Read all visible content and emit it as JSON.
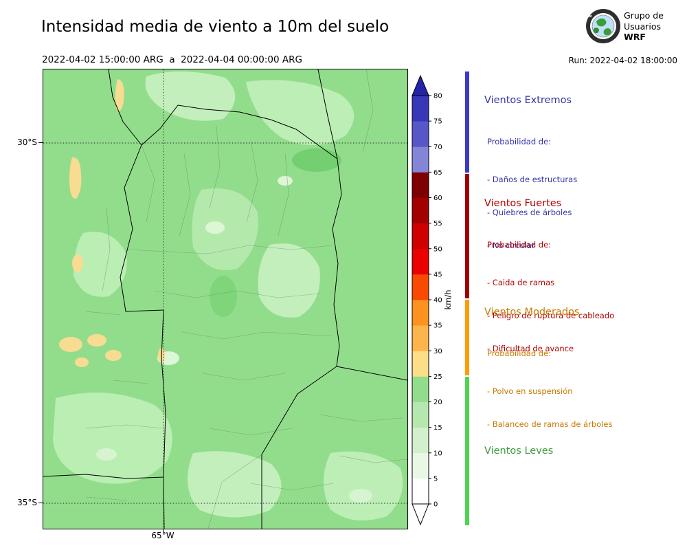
{
  "header": {
    "title": "Intensidad media de viento a 10m del suelo",
    "subtitle": "2022-04-02 15:00:00 ARG  a  2022-04-04 00:00:00 ARG",
    "run_label": "Run: 2022-04-02 18:00:00",
    "logo": {
      "line1": "Grupo de",
      "line2": "Usuarios",
      "line3": "WRF"
    }
  },
  "map": {
    "lat_ticks": [
      "30°S",
      "35°S"
    ],
    "lon_ticks": [
      "65°W"
    ]
  },
  "colorbar": {
    "unit": "km/h",
    "max": 80,
    "ticks": [
      "0",
      "5",
      "10",
      "15",
      "20",
      "25",
      "30",
      "35",
      "40",
      "45",
      "50",
      "55",
      "60",
      "65",
      "70",
      "75",
      "80"
    ],
    "segments": [
      {
        "from": 0,
        "to": 5,
        "color": "#ffffff"
      },
      {
        "from": 5,
        "to": 10,
        "color": "#e9f8e5"
      },
      {
        "from": 10,
        "to": 15,
        "color": "#d2f0cc"
      },
      {
        "from": 15,
        "to": 20,
        "color": "#b5e7ae"
      },
      {
        "from": 20,
        "to": 25,
        "color": "#92dd8c"
      },
      {
        "from": 25,
        "to": 30,
        "color": "#fcdd88"
      },
      {
        "from": 30,
        "to": 35,
        "color": "#fdb44b"
      },
      {
        "from": 35,
        "to": 40,
        "color": "#fd9220"
      },
      {
        "from": 40,
        "to": 45,
        "color": "#f84a00"
      },
      {
        "from": 45,
        "to": 50,
        "color": "#ea0000"
      },
      {
        "from": 50,
        "to": 55,
        "color": "#cf0000"
      },
      {
        "from": 55,
        "to": 60,
        "color": "#a30000"
      },
      {
        "from": 60,
        "to": 65,
        "color": "#7e0000"
      },
      {
        "from": 65,
        "to": 70,
        "color": "#8585d8"
      },
      {
        "from": 70,
        "to": 75,
        "color": "#5757c8"
      },
      {
        "from": 75,
        "to": 80,
        "color": "#3737b8"
      }
    ],
    "over_color": "#2424a8",
    "under_color": "#ffffff"
  },
  "legend": [
    {
      "title": "Vientos Extremos",
      "color": "#3434aa",
      "bar_color": "#3a3ac8",
      "lines": [
        "Probabilidad de:",
        "- Daños de estructuras",
        "- Quiebres de árboles",
        "- No circular"
      ]
    },
    {
      "title": "Vientos Fuertes",
      "color": "#b30000",
      "bar_color": "#9e0000",
      "lines": [
        "Probabilidad de:",
        "- Caida de ramas",
        "- Peligro de ruptura de cableado",
        "- Dificultad de avance"
      ]
    },
    {
      "title": "Vientos Moderados",
      "color": "#c87a00",
      "bar_color": "#ff9c00",
      "lines": [
        "Probabilidad de:",
        "- Polvo en suspensión",
        "- Balanceo de ramas de árboles"
      ]
    },
    {
      "title": "Vientos Leves",
      "color": "#3f9b3f",
      "bar_color": "#4fd44f",
      "lines": []
    }
  ],
  "chart_data": {
    "type": "heatmap",
    "title": "Intensidad media de viento a 10m del suelo",
    "valid_from": "2022-04-02 15:00:00 ARG",
    "valid_to": "2022-04-04 00:00:00 ARG",
    "model_run": "2022-04-02 18:00:00",
    "unit": "km/h",
    "colorbar_range": [
      0,
      80
    ],
    "colorbar_tick_step": 5,
    "lat_gridlines": [
      "30°S",
      "35°S"
    ],
    "lon_gridlines": [
      "65°W"
    ],
    "categories": [
      {
        "name": "Vientos Leves",
        "range_kmh": [
          0,
          25
        ]
      },
      {
        "name": "Vientos Moderados",
        "range_kmh": [
          25,
          40
        ]
      },
      {
        "name": "Vientos Fuertes",
        "range_kmh": [
          40,
          65
        ]
      },
      {
        "name": "Vientos Extremos",
        "range_kmh": [
          65,
          80
        ]
      }
    ]
  }
}
